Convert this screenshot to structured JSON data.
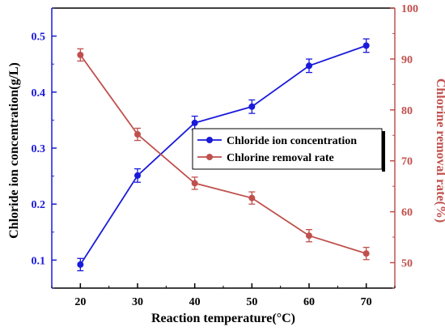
{
  "chart_data": {
    "type": "line",
    "title": "",
    "xlabel": "Reaction temperature(°C)",
    "ylabel_left": "Chloride ion concentration(g/L)",
    "ylabel_right": "Chlorine removal rate(%)",
    "x": [
      20,
      30,
      40,
      50,
      60,
      70
    ],
    "x_ticks": [
      20,
      30,
      40,
      50,
      60,
      70
    ],
    "xlim": [
      15,
      75
    ],
    "ylim_left": [
      0.05,
      0.55
    ],
    "ylim_right": [
      45,
      100
    ],
    "y_ticks_left": [
      0.1,
      0.2,
      0.3,
      0.4,
      0.5
    ],
    "y_ticks_right": [
      50,
      60,
      70,
      80,
      90,
      100
    ],
    "y_tick_labels_left": [
      "0.1",
      "0.2",
      "0.3",
      "0.4",
      "0.5"
    ],
    "y_tick_labels_right": [
      "50",
      "60",
      "70",
      "80",
      "90",
      "100"
    ],
    "legend_position": "center-right",
    "grid": false,
    "series": [
      {
        "name": "Chloride ion concentration",
        "axis": "left",
        "color": "#1a1adb",
        "marker": "circle",
        "values": [
          0.092,
          0.251,
          0.345,
          0.374,
          0.447,
          0.483
        ],
        "error": [
          0.011,
          0.012,
          0.012,
          0.012,
          0.012,
          0.012
        ]
      },
      {
        "name": "Chlorine removal rate",
        "axis": "right",
        "color": "#c0504d",
        "marker": "circle",
        "values": [
          90.8,
          75.2,
          65.6,
          62.7,
          55.3,
          51.8
        ],
        "error": [
          1.2,
          1.2,
          1.2,
          1.2,
          1.2,
          1.2
        ]
      }
    ]
  }
}
